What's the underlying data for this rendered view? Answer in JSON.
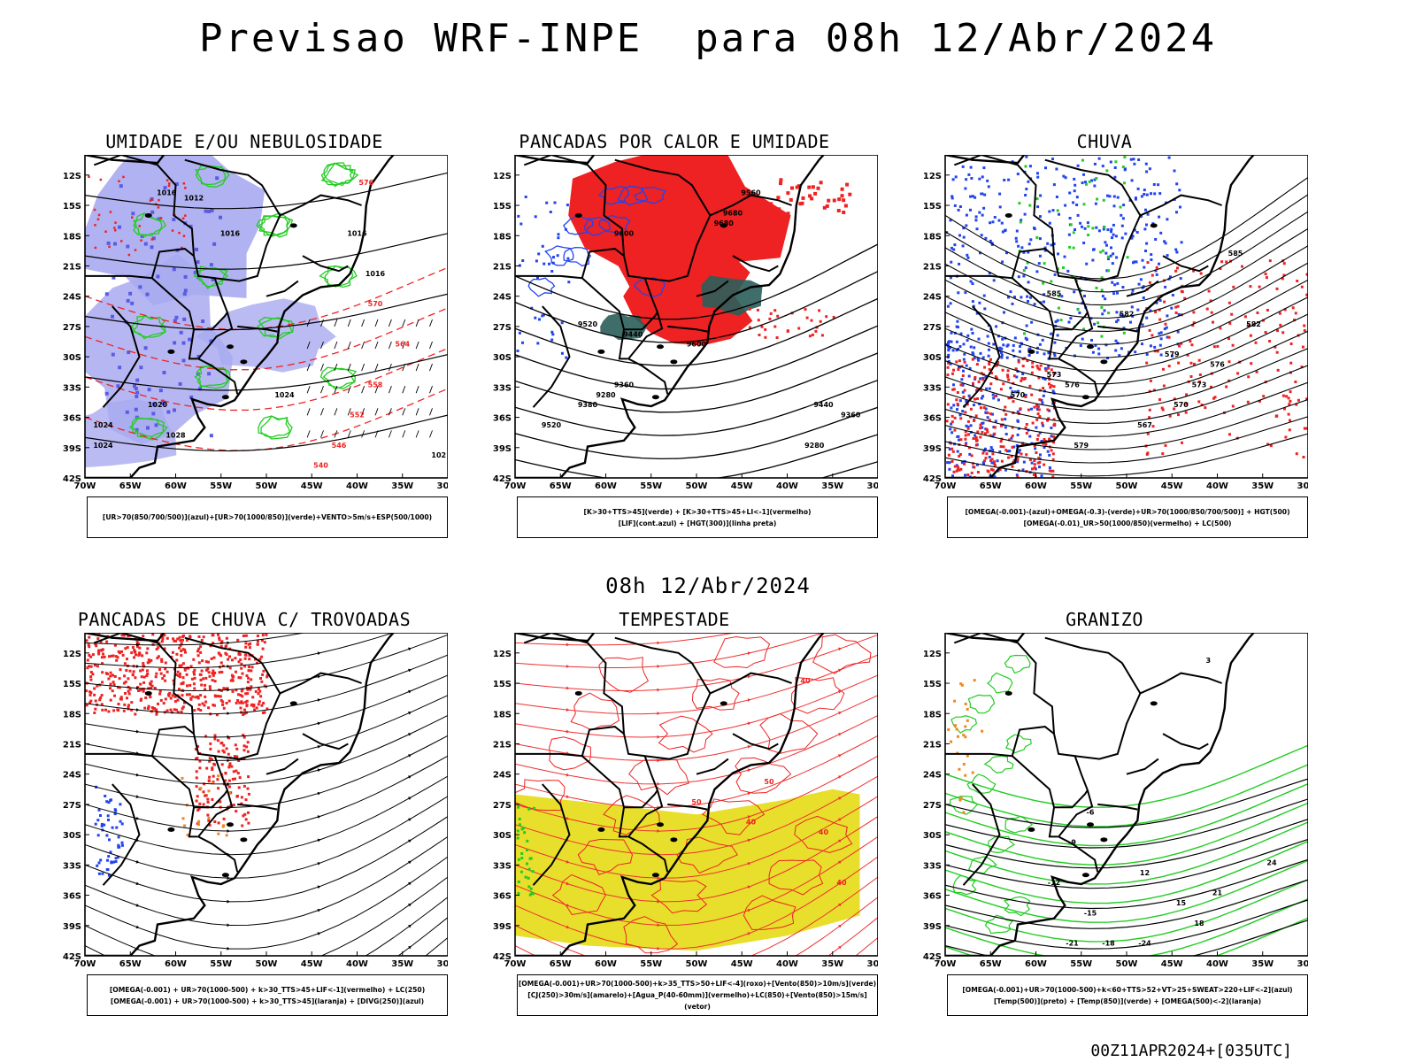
{
  "page": {
    "title": "Previsao WRF-INPE  para 08h 12/Abr/2024",
    "subtitle": "08h 12/Abr/2024",
    "footer": "00Z11APR2024+[035UTC]"
  },
  "axes": {
    "lat_labels": [
      "12S",
      "15S",
      "18S",
      "21S",
      "24S",
      "27S",
      "30S",
      "33S",
      "36S",
      "39S",
      "42S"
    ],
    "lon_labels": [
      "70W",
      "65W",
      "60W",
      "55W",
      "50W",
      "45W",
      "40W",
      "35W",
      "30W"
    ]
  },
  "colors": {
    "green": "#22cc22",
    "red": "#ee2222",
    "blue": "#2244ee",
    "lavender": "#a9aaf0",
    "yellow": "#e8df2c",
    "orange": "#ee8822",
    "darkteal": "#2a5e5a"
  },
  "panels": [
    {
      "id": "umidade",
      "title": "UMIDADE E/OU NEBULOSIDADE",
      "legend": [
        "[UR>70(850/700/500)](azul)+[UR>70(1000/850)](verde)+VENTO>5m/s+ESP(500/1000)"
      ],
      "contour_labels": [
        "1016",
        "1012",
        "1016",
        "1016",
        "1016",
        "1024",
        "1020",
        "1024",
        "1028",
        "1024",
        "576",
        "570",
        "564",
        "558",
        "552",
        "546",
        "540",
        "102"
      ]
    },
    {
      "id": "pancadas-calor",
      "title": "PANCADAS POR CALOR E UMIDADE",
      "legend": [
        "[K>30+TTS>45](verde) + [K>30+TTS>45+LI<-1](vermelho)",
        "[LIF](cont.azul) + [HGT(300)](linha preta)"
      ],
      "contour_labels": [
        "9560",
        "9680",
        "9600",
        "9520",
        "9440",
        "9360",
        "9280",
        "9380",
        "9520",
        "9440",
        "9360",
        "9280",
        "9600",
        "9680",
        "9560"
      ]
    },
    {
      "id": "chuva",
      "title": "CHUVA",
      "legend": [
        "[OMEGA(-0.001)-(azul)+OMEGA(-0.3)-(verde)+UR>70(1000/850/700/500)] + HGT(500)",
        "[OMEGA(-0.01)_UR>50(1000/850)(vermelho) + LC(500)"
      ],
      "contour_labels": [
        "585",
        "582",
        "579",
        "576",
        "573",
        "570",
        "567",
        "579",
        "576",
        "573",
        "570",
        "585",
        "582"
      ]
    },
    {
      "id": "pancadas-trovoadas",
      "title": "PANCADAS DE CHUVA C/ TROVOADAS",
      "legend": [
        "[OMEGA(-0.001) + UR>70(1000-500) + k>30_TTS>45+LIF<-1](vermelho) + LC(250)",
        "[OMEGA(-0.001) + UR>70(1000-500) + k>30_TTS>45](laranja) + [DIVG(250)](azul)"
      ],
      "contour_labels": []
    },
    {
      "id": "tempestade",
      "title": "TEMPESTADE",
      "legend": [
        "[OMEGA(-0.001)+UR>70(1000-500)+k>35_TTS>50+LIF<-4](roxo)+[Vento(850)>10m/s](verde)",
        "[CJ(250)>30m/s](amarelo)+[Agua_P(40-60mm)](vermelho)+LC(850)+[Vento(850)>15m/s](vetor)"
      ],
      "contour_labels": [
        "40",
        "50",
        "40",
        "40",
        "50",
        "40"
      ]
    },
    {
      "id": "granizo",
      "title": "GRANIZO",
      "legend": [
        "[OMEGA(-0.001)+UR>70(1000-500)+k<60+TTS>52+VT>25+SWEAT>220+LIF<-2](azul)",
        "[Temp(500)](preto) + [Temp(850)](verde) + [OMEGA(500)<-2](laranja)"
      ],
      "contour_labels": [
        "3",
        "-6",
        "-9",
        "-12",
        "-15",
        "-18",
        "-21",
        "-24",
        "12",
        "15",
        "18",
        "21",
        "24"
      ]
    }
  ]
}
